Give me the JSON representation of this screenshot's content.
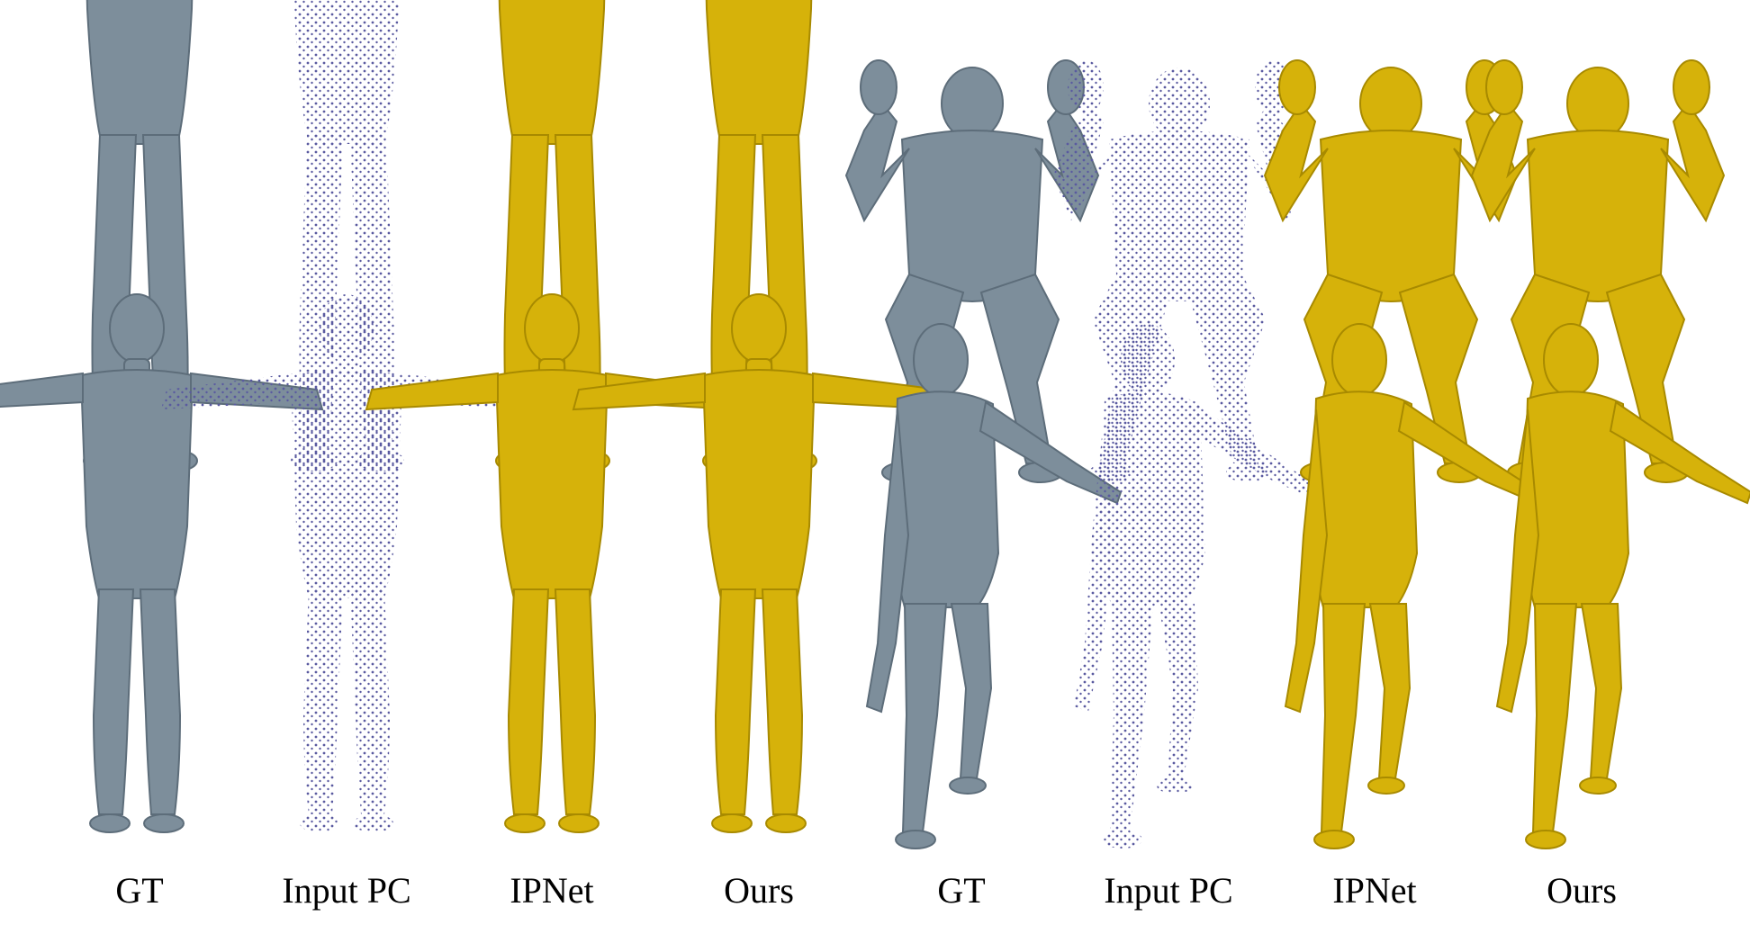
{
  "labels": [
    "GT",
    "Input PC",
    "IPNet",
    "Ours",
    "GT",
    "Input PC",
    "IPNet",
    "Ours"
  ],
  "colors": {
    "gt_body": "#7d8e9b",
    "gt_shadow": "#5d6d7a",
    "point_cloud": "#5a5aa0",
    "yellow_body": "#d6b20a",
    "yellow_shadow": "#a88a00",
    "background": "#ffffff"
  }
}
